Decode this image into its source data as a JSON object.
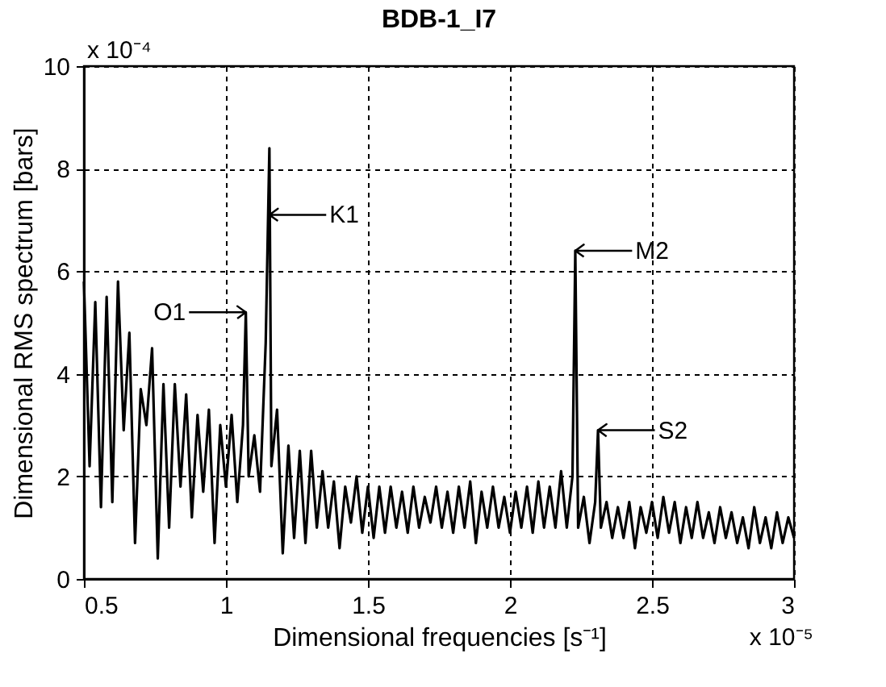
{
  "chart_data": {
    "type": "line",
    "title": "BDB-1_I7",
    "xlabel": "Dimensional frequencies [s⁻¹]",
    "ylabel": "Dimensional RMS spectrum  [bars]",
    "x": [
      0.5,
      0.52,
      0.54,
      0.56,
      0.58,
      0.6,
      0.62,
      0.64,
      0.66,
      0.68,
      0.7,
      0.72,
      0.74,
      0.76,
      0.78,
      0.8,
      0.82,
      0.84,
      0.86,
      0.88,
      0.9,
      0.92,
      0.94,
      0.96,
      0.98,
      1.0,
      1.02,
      1.04,
      1.06,
      1.07,
      1.08,
      1.1,
      1.12,
      1.14,
      1.153,
      1.16,
      1.18,
      1.2,
      1.22,
      1.24,
      1.26,
      1.28,
      1.3,
      1.32,
      1.34,
      1.36,
      1.38,
      1.4,
      1.42,
      1.44,
      1.46,
      1.48,
      1.5,
      1.52,
      1.54,
      1.56,
      1.58,
      1.6,
      1.62,
      1.64,
      1.66,
      1.68,
      1.7,
      1.72,
      1.74,
      1.76,
      1.78,
      1.8,
      1.82,
      1.84,
      1.86,
      1.88,
      1.9,
      1.92,
      1.94,
      1.96,
      1.98,
      2.0,
      2.02,
      2.04,
      2.06,
      2.08,
      2.1,
      2.12,
      2.14,
      2.16,
      2.18,
      2.2,
      2.22,
      2.23,
      2.24,
      2.26,
      2.28,
      2.3,
      2.31,
      2.32,
      2.34,
      2.36,
      2.38,
      2.4,
      2.42,
      2.44,
      2.46,
      2.48,
      2.5,
      2.52,
      2.54,
      2.56,
      2.58,
      2.6,
      2.62,
      2.64,
      2.66,
      2.68,
      2.7,
      2.72,
      2.74,
      2.76,
      2.78,
      2.8,
      2.82,
      2.84,
      2.86,
      2.88,
      2.9,
      2.92,
      2.94,
      2.96,
      2.98,
      3.0
    ],
    "series": [
      {
        "color": "#000000",
        "values": [
          5.8,
          2.2,
          5.4,
          1.4,
          5.5,
          1.5,
          5.8,
          2.9,
          4.8,
          0.7,
          3.7,
          3.0,
          4.5,
          0.4,
          3.8,
          1.0,
          3.8,
          1.8,
          3.6,
          1.2,
          3.2,
          1.7,
          3.3,
          0.7,
          3.0,
          1.8,
          3.2,
          1.5,
          3.0,
          5.2,
          2.0,
          2.8,
          1.7,
          4.6,
          8.4,
          2.2,
          3.3,
          0.5,
          2.6,
          0.8,
          2.5,
          0.7,
          2.5,
          1.0,
          2.1,
          1.0,
          1.9,
          0.6,
          1.8,
          1.1,
          2.0,
          0.9,
          1.8,
          0.8,
          1.8,
          0.9,
          1.8,
          1.0,
          1.7,
          0.9,
          1.8,
          1.0,
          1.6,
          1.1,
          1.8,
          1.0,
          1.7,
          0.9,
          1.8,
          1.0,
          1.9,
          0.7,
          1.7,
          1.0,
          1.8,
          1.0,
          1.6,
          0.9,
          1.7,
          1.0,
          1.8,
          0.9,
          1.9,
          1.0,
          1.8,
          1.0,
          2.1,
          1.0,
          2.0,
          6.4,
          1.0,
          1.6,
          0.7,
          1.5,
          2.9,
          1.0,
          1.5,
          0.8,
          1.4,
          0.8,
          1.5,
          0.6,
          1.4,
          0.9,
          1.5,
          0.8,
          1.6,
          0.9,
          1.5,
          0.7,
          1.4,
          0.8,
          1.5,
          0.8,
          1.3,
          0.7,
          1.4,
          0.8,
          1.3,
          0.7,
          1.2,
          0.6,
          1.4,
          0.7,
          1.2,
          0.6,
          1.3,
          0.7,
          1.2,
          0.8
        ]
      }
    ],
    "xlim": [
      0.5,
      3
    ],
    "xticks": [
      0.5,
      1,
      1.5,
      2,
      2.5,
      3
    ],
    "ylim": [
      0,
      10
    ],
    "yticks": [
      0,
      2,
      4,
      6,
      8,
      10
    ],
    "grid": true,
    "line_style": "solid",
    "marker": "none",
    "annotations": [
      {
        "text": "O1",
        "x": 1.07,
        "y": 5.2
      },
      {
        "text": "K1",
        "x": 1.153,
        "y": 7.1
      },
      {
        "text": "M2",
        "x": 2.23,
        "y": 6.4
      },
      {
        "text": "S2",
        "x": 2.31,
        "y": 2.9
      },
      "x 10⁻⁴",
      "x 10⁻⁵"
    ]
  }
}
